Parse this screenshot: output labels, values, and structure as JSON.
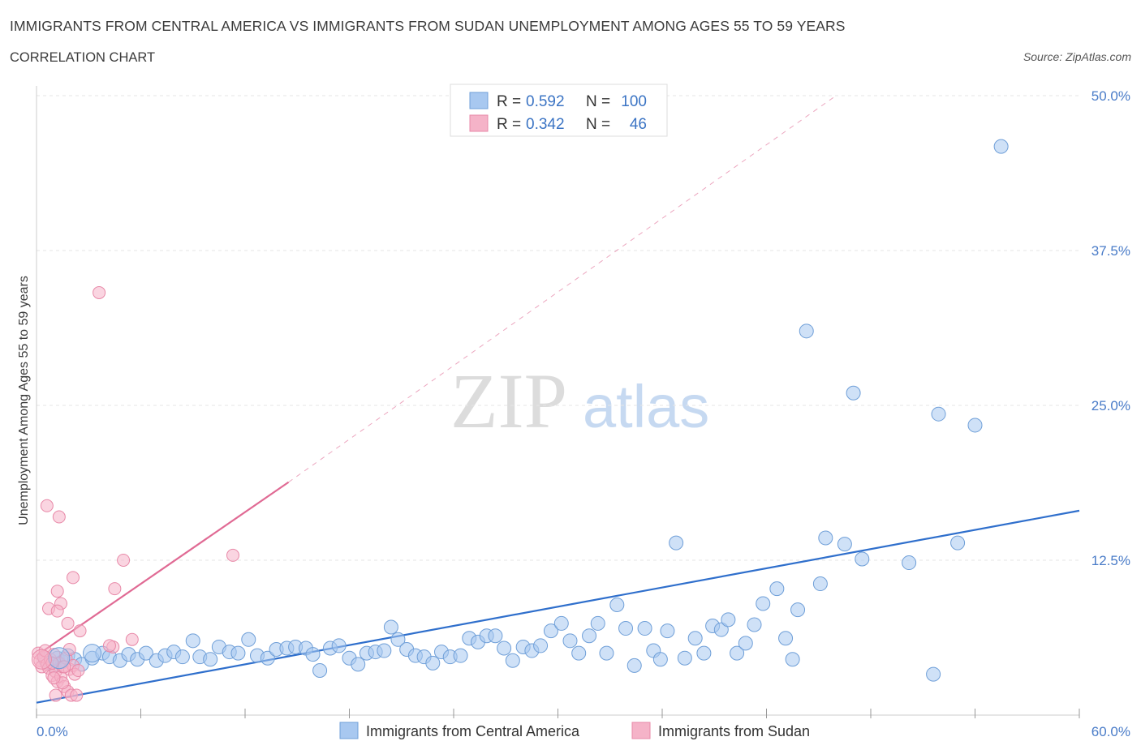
{
  "chart_data": {
    "type": "scatter",
    "title": "IMMIGRANTS FROM CENTRAL AMERICA VS IMMIGRANTS FROM SUDAN UNEMPLOYMENT AMONG AGES 55 TO 59 YEARS",
    "subtitle": "CORRELATION CHART",
    "source": "Source: ZipAtlas.com",
    "watermark_zip": "ZIP",
    "watermark_atlas": "atlas",
    "ylabel": "Unemployment Among Ages 55 to 59 years",
    "xlim": [
      0,
      60
    ],
    "ylim": [
      0,
      50
    ],
    "x_tick_labels": [
      "0.0%",
      "60.0%"
    ],
    "y_tick_labels": [
      {
        "value": 50,
        "label": "50.0%"
      },
      {
        "value": 37.5,
        "label": "37.5%"
      },
      {
        "value": 25,
        "label": "25.0%"
      },
      {
        "value": 12.5,
        "label": "12.5%"
      }
    ],
    "legend": [
      {
        "r_label": "R =",
        "r_value": "0.592",
        "n_label": "N =",
        "n_value": "100"
      },
      {
        "r_label": "R =",
        "r_value": "0.342",
        "n_label": "N =",
        "n_value": "46"
      }
    ],
    "series": [
      {
        "name": "Immigrants from Central America",
        "color": "#a8c8f0",
        "stroke": "#6f9fd8",
        "trend_color": "#2f6fcc",
        "trend": {
          "x0": 0,
          "y0": 1.0,
          "x1": 60,
          "y1": 16.5
        },
        "points": [
          [
            0.5,
            4.5
          ],
          [
            0.8,
            4.2
          ],
          [
            1.0,
            4.0
          ],
          [
            1.2,
            4.6
          ],
          [
            1.5,
            4.3
          ],
          [
            1.8,
            4.8
          ],
          [
            2.2,
            4.5
          ],
          [
            2.6,
            4.1
          ],
          [
            3.2,
            4.6
          ],
          [
            3.8,
            5.0
          ],
          [
            4.2,
            4.7
          ],
          [
            4.8,
            4.4
          ],
          [
            5.3,
            4.9
          ],
          [
            5.8,
            4.5
          ],
          [
            6.3,
            5.0
          ],
          [
            6.9,
            4.4
          ],
          [
            7.4,
            4.8
          ],
          [
            7.9,
            5.1
          ],
          [
            8.4,
            4.7
          ],
          [
            9.0,
            6.0
          ],
          [
            9.4,
            4.7
          ],
          [
            10.0,
            4.5
          ],
          [
            10.5,
            5.5
          ],
          [
            11.1,
            5.1
          ],
          [
            11.6,
            5.0
          ],
          [
            12.2,
            6.1
          ],
          [
            12.7,
            4.8
          ],
          [
            13.3,
            4.6
          ],
          [
            13.8,
            5.3
          ],
          [
            14.4,
            5.4
          ],
          [
            14.9,
            5.5
          ],
          [
            15.5,
            5.4
          ],
          [
            15.9,
            4.9
          ],
          [
            16.3,
            3.6
          ],
          [
            16.9,
            5.4
          ],
          [
            17.4,
            5.6
          ],
          [
            18.0,
            4.6
          ],
          [
            18.5,
            4.1
          ],
          [
            19.0,
            5.0
          ],
          [
            19.5,
            5.1
          ],
          [
            20.0,
            5.2
          ],
          [
            20.4,
            7.1
          ],
          [
            20.8,
            6.1
          ],
          [
            21.3,
            5.3
          ],
          [
            21.8,
            4.8
          ],
          [
            22.3,
            4.7
          ],
          [
            22.8,
            4.2
          ],
          [
            23.3,
            5.1
          ],
          [
            23.8,
            4.7
          ],
          [
            24.4,
            4.8
          ],
          [
            24.9,
            6.2
          ],
          [
            25.4,
            5.9
          ],
          [
            25.9,
            6.4
          ],
          [
            26.4,
            6.4
          ],
          [
            26.9,
            5.4
          ],
          [
            27.4,
            4.4
          ],
          [
            28.0,
            5.5
          ],
          [
            28.5,
            5.2
          ],
          [
            29.0,
            5.6
          ],
          [
            29.6,
            6.8
          ],
          [
            30.2,
            7.4
          ],
          [
            30.7,
            6.0
          ],
          [
            31.2,
            5.0
          ],
          [
            31.8,
            6.4
          ],
          [
            32.3,
            7.4
          ],
          [
            32.8,
            5.0
          ],
          [
            33.4,
            8.9
          ],
          [
            33.9,
            7.0
          ],
          [
            34.4,
            4.0
          ],
          [
            35.0,
            7.0
          ],
          [
            35.5,
            5.2
          ],
          [
            35.9,
            4.5
          ],
          [
            36.3,
            6.8
          ],
          [
            36.8,
            13.9
          ],
          [
            37.3,
            4.6
          ],
          [
            37.9,
            6.2
          ],
          [
            38.4,
            5.0
          ],
          [
            38.9,
            7.2
          ],
          [
            39.4,
            6.9
          ],
          [
            39.8,
            7.7
          ],
          [
            40.3,
            5.0
          ],
          [
            40.8,
            5.8
          ],
          [
            41.3,
            7.3
          ],
          [
            41.8,
            9.0
          ],
          [
            42.6,
            10.2
          ],
          [
            43.1,
            6.2
          ],
          [
            43.5,
            4.5
          ],
          [
            43.8,
            8.5
          ],
          [
            44.3,
            31.0
          ],
          [
            45.1,
            10.6
          ],
          [
            45.4,
            14.3
          ],
          [
            46.5,
            13.8
          ],
          [
            47.0,
            26.0
          ],
          [
            47.5,
            12.6
          ],
          [
            50.2,
            12.3
          ],
          [
            51.6,
            3.3
          ],
          [
            51.9,
            24.3
          ],
          [
            53.0,
            13.9
          ],
          [
            54.0,
            23.4
          ],
          [
            55.5,
            45.9
          ]
        ],
        "point_sizes": [
          4
        ]
      },
      {
        "name": "Immigrants from Sudan",
        "color": "#f5b3c8",
        "stroke": "#e889a8",
        "trend_color": "#e06a94",
        "trend": {
          "x0": 0,
          "y0": 4.8,
          "x1": 14.5,
          "y1": 18.8
        },
        "trend_extension": {
          "x0": 14.5,
          "y0": 18.8,
          "x1": 46.0,
          "y1": 50.0
        },
        "points": [
          [
            0.1,
            5.0
          ],
          [
            0.2,
            4.4
          ],
          [
            0.3,
            3.9
          ],
          [
            0.4,
            4.7
          ],
          [
            0.5,
            5.2
          ],
          [
            0.6,
            4.1
          ],
          [
            0.7,
            3.8
          ],
          [
            0.8,
            4.5
          ],
          [
            0.9,
            3.2
          ],
          [
            1.0,
            4.9
          ],
          [
            1.1,
            3.5
          ],
          [
            1.2,
            2.7
          ],
          [
            1.3,
            4.2
          ],
          [
            1.4,
            3.1
          ],
          [
            1.5,
            3.9
          ],
          [
            1.6,
            2.3
          ],
          [
            1.7,
            4.6
          ],
          [
            1.8,
            1.9
          ],
          [
            1.9,
            3.7
          ],
          [
            2.0,
            1.6
          ],
          [
            2.1,
            4.0
          ],
          [
            2.2,
            3.3
          ],
          [
            0.6,
            16.9
          ],
          [
            1.1,
            1.6
          ],
          [
            1.3,
            16.0
          ],
          [
            2.1,
            11.1
          ],
          [
            2.5,
            6.8
          ],
          [
            1.4,
            9.0
          ],
          [
            0.7,
            8.6
          ],
          [
            1.2,
            10.0
          ],
          [
            1.5,
            2.6
          ],
          [
            1.8,
            7.4
          ],
          [
            2.4,
            3.6
          ],
          [
            1.9,
            5.3
          ],
          [
            3.6,
            34.1
          ],
          [
            4.5,
            10.2
          ],
          [
            4.4,
            5.5
          ],
          [
            4.2,
            5.6
          ],
          [
            5.0,
            12.5
          ],
          [
            5.5,
            6.1
          ],
          [
            11.3,
            12.9
          ],
          [
            1.2,
            8.4
          ],
          [
            0.9,
            4.2
          ],
          [
            2.3,
            1.6
          ],
          [
            1.0,
            3.0
          ],
          [
            1.6,
            3.9
          ]
        ],
        "point_sizes": [
          4
        ]
      }
    ]
  }
}
